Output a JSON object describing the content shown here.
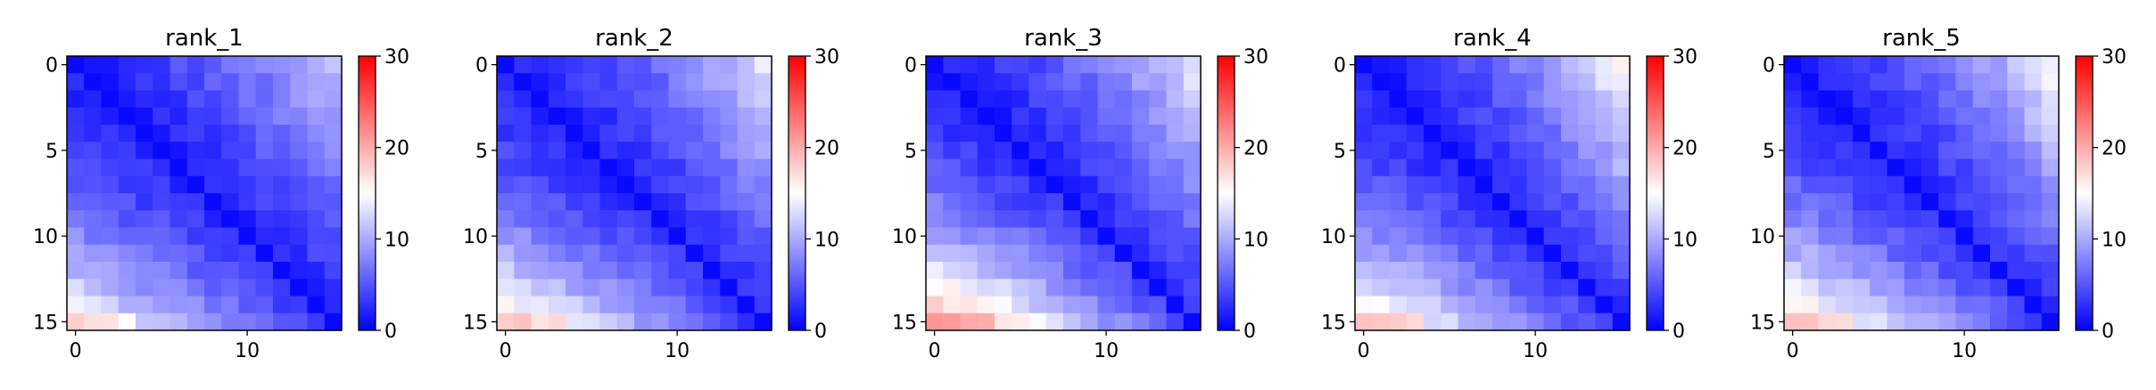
{
  "chart_data": [
    {
      "type": "heatmap",
      "title": "rank_1",
      "grid_size": 16,
      "x_ticks": [
        0,
        10
      ],
      "y_ticks": [
        0,
        5,
        10,
        15
      ],
      "color_range": [
        0,
        30
      ],
      "colorbar_ticks": [
        0,
        10,
        20,
        30
      ],
      "colormap": [
        "#0000ff",
        "#ffffff",
        "#ff0000"
      ],
      "diagonal_value": 0.5,
      "edge_value_bottom": 13,
      "edge_value_right": 9,
      "edge_value_corner": 18
    },
    {
      "type": "heatmap",
      "title": "rank_2",
      "grid_size": 16,
      "x_ticks": [
        0,
        10
      ],
      "y_ticks": [
        0,
        5,
        10,
        15
      ],
      "color_range": [
        0,
        30
      ],
      "colorbar_ticks": [
        0,
        10,
        20,
        30
      ],
      "colormap": [
        "#0000ff",
        "#ffffff",
        "#ff0000"
      ],
      "diagonal_value": 0.5,
      "edge_value_bottom": 15,
      "edge_value_right": 11,
      "edge_value_corner": 19
    },
    {
      "type": "heatmap",
      "title": "rank_3",
      "grid_size": 16,
      "x_ticks": [
        0,
        10
      ],
      "y_ticks": [
        0,
        5,
        10,
        15
      ],
      "color_range": [
        0,
        30
      ],
      "colorbar_ticks": [
        0,
        10,
        20,
        30
      ],
      "colormap": [
        "#0000ff",
        "#ffffff",
        "#ff0000"
      ],
      "diagonal_value": 0.5,
      "edge_value_bottom": 19,
      "edge_value_right": 11,
      "edge_value_corner": 22
    },
    {
      "type": "heatmap",
      "title": "rank_4",
      "grid_size": 16,
      "x_ticks": [
        0,
        10
      ],
      "y_ticks": [
        0,
        5,
        10,
        15
      ],
      "color_range": [
        0,
        30
      ],
      "colorbar_ticks": [
        0,
        10,
        20,
        30
      ],
      "colormap": [
        "#0000ff",
        "#ffffff",
        "#ff0000"
      ],
      "diagonal_value": 0.5,
      "edge_value_bottom": 15,
      "edge_value_right": 13,
      "edge_value_corner": 19
    },
    {
      "type": "heatmap",
      "title": "rank_5",
      "grid_size": 16,
      "x_ticks": [
        0,
        10
      ],
      "y_ticks": [
        0,
        5,
        10,
        15
      ],
      "color_range": [
        0,
        30
      ],
      "colorbar_ticks": [
        0,
        10,
        20,
        30
      ],
      "colormap": [
        "#0000ff",
        "#ffffff",
        "#ff0000"
      ],
      "diagonal_value": 0.5,
      "edge_value_bottom": 16,
      "edge_value_right": 12,
      "edge_value_corner": 19
    }
  ]
}
